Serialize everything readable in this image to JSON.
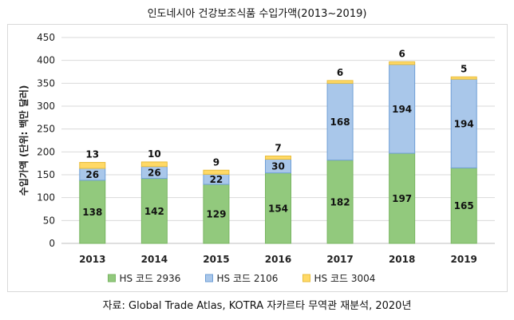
{
  "title": "인도네시아 건강보조식품 수입가액(2013~2019)",
  "source": "자료: Global Trade Atlas, KOTRA 자카르타 무역관 재분석, 2020년",
  "chart_data": {
    "type": "bar",
    "stacked": true,
    "title": "인도네시아 건강보조식품 수입가액(2013~2019)",
    "xlabel": "",
    "ylabel": "수입가액 (단위: 백만 달러)",
    "ylim": [
      0,
      450
    ],
    "yticks": [
      0,
      50,
      100,
      150,
      200,
      250,
      300,
      350,
      400,
      450
    ],
    "grid": true,
    "legend_position": "bottom",
    "categories": [
      "2013",
      "2014",
      "2015",
      "2016",
      "2017",
      "2018",
      "2019"
    ],
    "series": [
      {
        "name": "HS 코드 2936",
        "color": "#92c97d",
        "edge": "#78b561",
        "values": [
          138,
          142,
          129,
          154,
          182,
          197,
          165
        ]
      },
      {
        "name": "HS 코드 2106",
        "color": "#a9c7ea",
        "edge": "#6f9fd6",
        "values": [
          26,
          26,
          22,
          30,
          168,
          194,
          194
        ]
      },
      {
        "name": "HS 코드 3004",
        "color": "#ffd966",
        "edge": "#e8bd3c",
        "values": [
          13,
          10,
          9,
          7,
          6,
          6,
          5
        ]
      }
    ]
  }
}
